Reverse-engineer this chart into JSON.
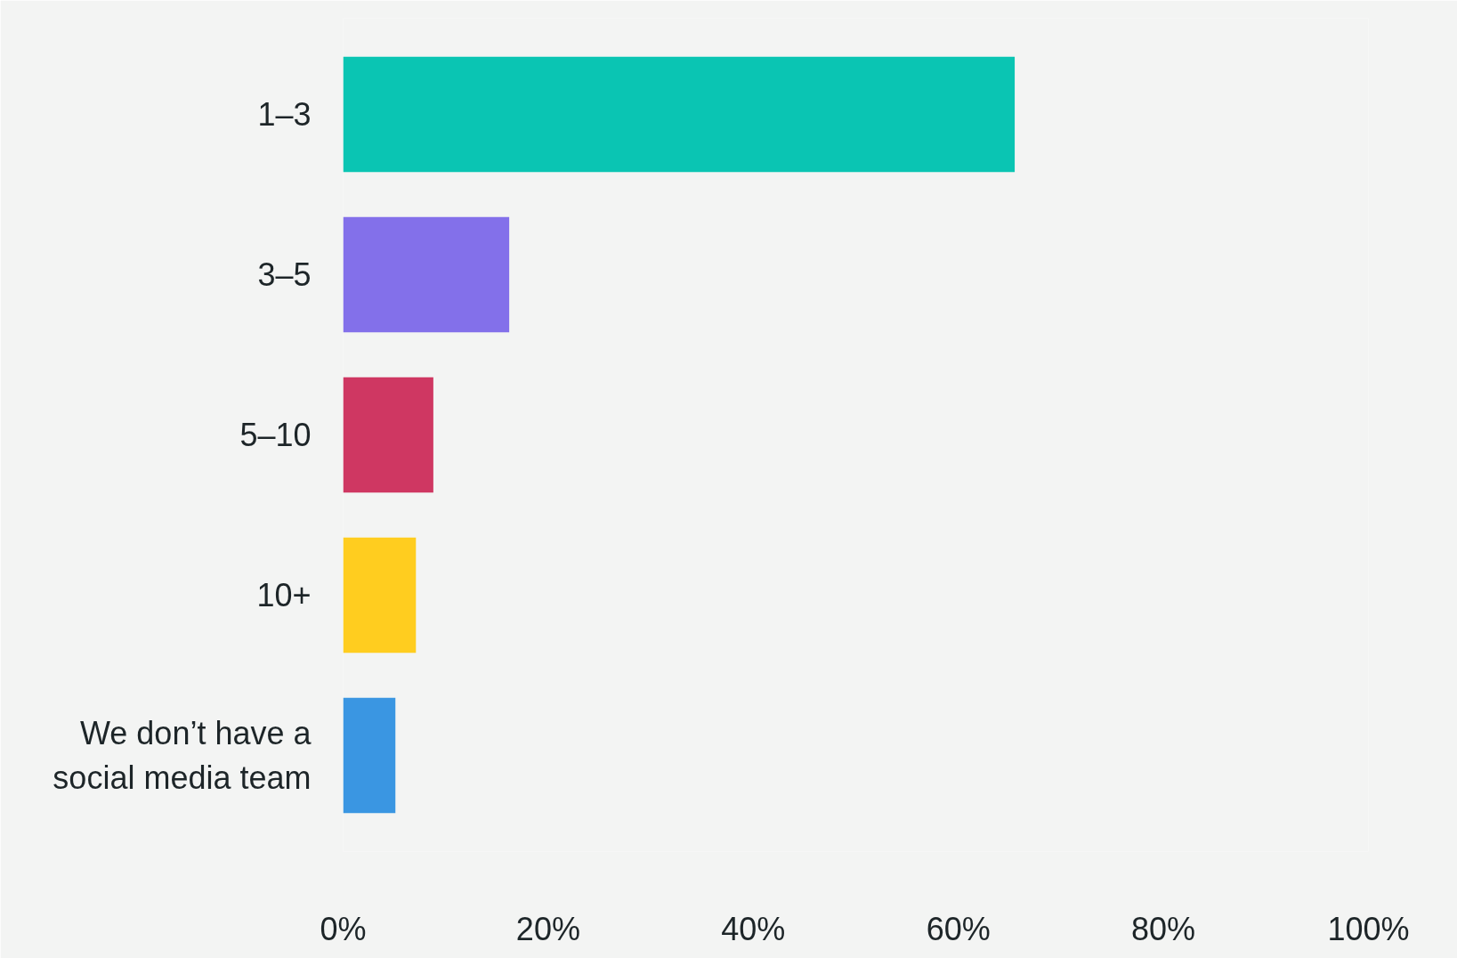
{
  "chart_data": {
    "type": "bar",
    "orientation": "horizontal",
    "categories": [
      "1–3",
      "3–5",
      "5–10",
      "10+",
      "We don’t have a social media team"
    ],
    "values": [
      65.5,
      16.2,
      8.8,
      7.1,
      5.1
    ],
    "colors": [
      "#0ac5b3",
      "#8370ea",
      "#cf3762",
      "#ffcd1f",
      "#3a96e2"
    ],
    "xlim": [
      0,
      100
    ],
    "xticks": [
      {
        "value": 0,
        "label": "0%"
      },
      {
        "value": 20,
        "label": "20%"
      },
      {
        "value": 40,
        "label": "40%"
      },
      {
        "value": 60,
        "label": "60%"
      },
      {
        "value": 80,
        "label": "80%"
      },
      {
        "value": 100,
        "label": "100%"
      }
    ],
    "grid": false
  }
}
